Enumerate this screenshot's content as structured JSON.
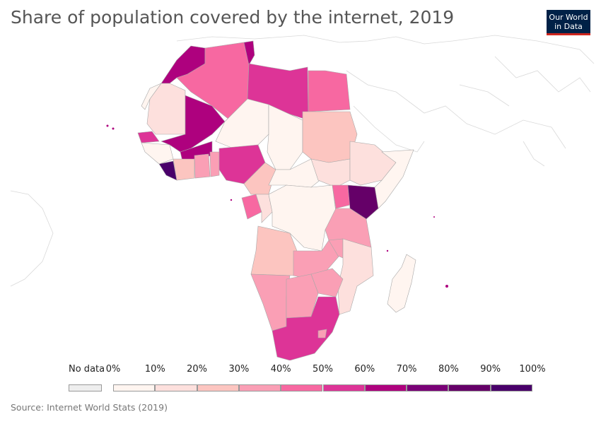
{
  "header": {
    "title": "Share of population covered by the internet, 2019",
    "logo_line1": "Our World",
    "logo_line2": "in Data"
  },
  "legend": {
    "no_data_label": "No data",
    "no_data_color": "#eeeeee",
    "ticks": [
      "0%",
      "10%",
      "20%",
      "30%",
      "40%",
      "50%",
      "60%",
      "70%",
      "80%",
      "90%",
      "100%"
    ],
    "colors": [
      "#fff5f0",
      "#fde0dd",
      "#fcc5c0",
      "#fa9fb5",
      "#f768a1",
      "#dd3497",
      "#ae017e",
      "#7a0177",
      "#650068",
      "#49006a"
    ]
  },
  "footer": {
    "source": "Source: Internet World Stats (2019)"
  }
}
